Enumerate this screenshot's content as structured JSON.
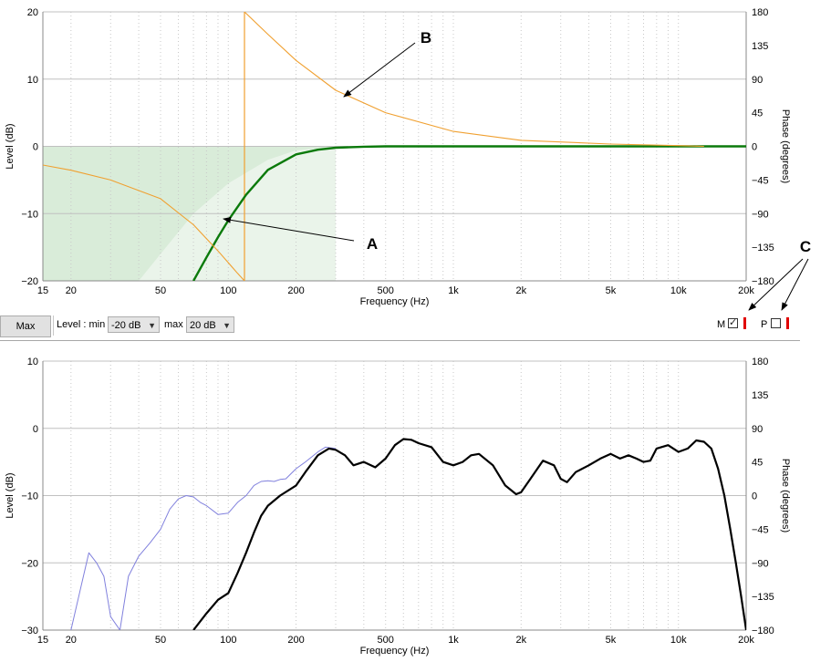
{
  "chart_data": [
    {
      "type": "line",
      "title": "",
      "xlabel": "Frequency (Hz)",
      "ylabel": "Level (dB)",
      "y2label": "Phase (degrees)",
      "x_scale": "log",
      "xlim": [
        15,
        20000
      ],
      "ylim": [
        -20,
        20
      ],
      "y2lim": [
        -180,
        180
      ],
      "x_ticks": [
        15,
        20,
        50,
        100,
        200,
        500,
        1000,
        2000,
        5000,
        10000,
        20000
      ],
      "x_tick_labels": [
        "15",
        "20",
        "50",
        "100",
        "200",
        "500",
        "1k",
        "2k",
        "5k",
        "10k",
        "20k"
      ],
      "y_ticks": [
        20,
        10,
        0,
        -10,
        -20
      ],
      "y2_ticks": [
        180,
        135,
        90,
        45,
        0,
        -45,
        -90,
        -135,
        -180
      ],
      "grid": true,
      "shaded_regions": [
        {
          "color": "#d9ecd9",
          "x": [
            15,
            20,
            30,
            50,
            100,
            200,
            300
          ],
          "upper": [
            0,
            0,
            0,
            0,
            0,
            0,
            0
          ],
          "lower": [
            -20,
            -20,
            -20,
            -20,
            -20,
            -20,
            -20
          ]
        },
        {
          "color": "#eaf4ea",
          "x": [
            40,
            50,
            70,
            100,
            150,
            200,
            300
          ],
          "upper": [
            -20,
            -16,
            -10,
            -5.5,
            -2,
            -0.6,
            -0.1
          ],
          "lower": [
            -20,
            -20,
            -20,
            -20,
            -20,
            -20,
            -20
          ]
        }
      ],
      "series": [
        {
          "color": "#0b7a0b",
          "axis": "level",
          "x": [
            70,
            80,
            90,
            100,
            120,
            150,
            200,
            250,
            300,
            400,
            500,
            1000,
            5000,
            10000,
            20000
          ],
          "y": [
            -20,
            -16.5,
            -13.5,
            -11,
            -7.2,
            -3.5,
            -1.2,
            -0.5,
            -0.2,
            -0.05,
            0,
            0,
            0,
            0,
            0
          ]
        },
        {
          "color": "#f0a030",
          "axis": "phase",
          "x": [
            15,
            20,
            30,
            50,
            70,
            90,
            110,
            118
          ],
          "y": [
            -25,
            -32,
            -45,
            -70,
            -105,
            -140,
            -170,
            -180
          ]
        },
        {
          "color": "#f0a030",
          "axis": "phase",
          "x": [
            118,
            150,
            200,
            300,
            500,
            1000,
            2000,
            5000,
            10000,
            13000
          ],
          "y": [
            180,
            150,
            115,
            75,
            45,
            20,
            8,
            3,
            1,
            0
          ]
        }
      ],
      "phase_wrap_marker_hz": 118,
      "annotations": [
        {
          "label": "A",
          "arrow_to": [
            93,
            -11
          ],
          "text_at": "right of curve"
        },
        {
          "label": "B",
          "arrow_to": [
            350,
            67
          ],
          "text_at": "upper right"
        },
        {
          "label": "C",
          "arrow_to": "M and P checkboxes"
        }
      ]
    },
    {
      "type": "line",
      "title": "",
      "xlabel": "Frequency (Hz)",
      "ylabel": "Level (dB)",
      "y2label": "Phase (degrees)",
      "x_scale": "log",
      "xlim": [
        15,
        20000
      ],
      "ylim": [
        -30,
        10
      ],
      "y2lim": [
        -180,
        180
      ],
      "x_ticks": [
        15,
        20,
        50,
        100,
        200,
        500,
        1000,
        2000,
        5000,
        10000,
        20000
      ],
      "x_tick_labels": [
        "15",
        "20",
        "50",
        "100",
        "200",
        "500",
        "1k",
        "2k",
        "5k",
        "10k",
        "20k"
      ],
      "y_ticks": [
        10,
        0,
        -10,
        -20,
        -30
      ],
      "y2_ticks": [
        180,
        135,
        90,
        45,
        0,
        -45,
        -90,
        -135,
        -180
      ],
      "grid": true,
      "series": [
        {
          "color": "#8080dd",
          "width": 1,
          "x": [
            20,
            22,
            24,
            26,
            28,
            30,
            33,
            36,
            40,
            45,
            50,
            55,
            60,
            65,
            70,
            75,
            80,
            90,
            100,
            110,
            120,
            130,
            140,
            150,
            160,
            170,
            180,
            200,
            220,
            250,
            270,
            300
          ],
          "y": [
            -30,
            -24,
            -18.5,
            -20,
            -22,
            -28,
            -30,
            -22,
            -19,
            -17,
            -15,
            -12,
            -10.5,
            -10,
            -10.2,
            -11,
            -11.5,
            -12.8,
            -12.6,
            -11,
            -10,
            -8.5,
            -7.9,
            -7.8,
            -7.9,
            -7.6,
            -7.5,
            -6,
            -5,
            -3.5,
            -2.8,
            -3
          ]
        },
        {
          "color": "#000000",
          "width": 2.2,
          "x": [
            70,
            80,
            90,
            100,
            110,
            120,
            130,
            140,
            150,
            170,
            200,
            220,
            250,
            280,
            300,
            330,
            360,
            400,
            450,
            500,
            550,
            600,
            650,
            700,
            800,
            900,
            1000,
            1100,
            1200,
            1300,
            1500,
            1700,
            1900,
            2000,
            2200,
            2500,
            2800,
            3000,
            3200,
            3500,
            4000,
            4500,
            5000,
            5500,
            6000,
            6500,
            7000,
            7500,
            8000,
            9000,
            10000,
            11000,
            12000,
            13000,
            14000,
            15000,
            16000,
            17000,
            18000,
            19000,
            20000
          ],
          "y": [
            -30,
            -27.5,
            -25.5,
            -24.5,
            -21.5,
            -18.5,
            -15.5,
            -13,
            -11.5,
            -10,
            -8.5,
            -6.5,
            -4,
            -3,
            -3.2,
            -4,
            -5.5,
            -5,
            -5.8,
            -4.5,
            -2.5,
            -1.6,
            -1.7,
            -2.2,
            -2.8,
            -5,
            -5.5,
            -5,
            -4,
            -3.8,
            -5.5,
            -8.5,
            -9.8,
            -9.5,
            -7.5,
            -4.8,
            -5.5,
            -7.5,
            -8,
            -6.5,
            -5.5,
            -4.5,
            -3.8,
            -4.5,
            -4,
            -4.5,
            -5,
            -4.8,
            -3,
            -2.5,
            -3.5,
            -3,
            -1.8,
            -2,
            -3,
            -6,
            -10,
            -15,
            -20,
            -25,
            -30
          ]
        }
      ]
    }
  ],
  "toolbar": {
    "max_label": "Max",
    "level_label": "Level : min",
    "min_value": "-20 dB",
    "max_label_text": "max",
    "max_value": "20 dB",
    "m_label": "M",
    "m_checked": true,
    "p_label": "P",
    "p_checked": false,
    "indicator_color": "#e00000"
  }
}
